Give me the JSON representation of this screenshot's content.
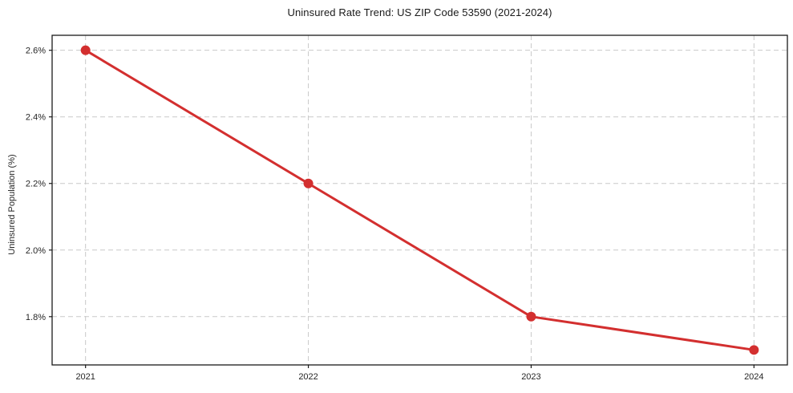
{
  "chart_data": {
    "type": "line",
    "title": "Uninsured Rate Trend: US ZIP Code 53590 (2021-2024)",
    "xlabel": "",
    "ylabel": "Uninsured Population (%)",
    "x": [
      2021,
      2022,
      2023,
      2024
    ],
    "x_tick_labels": [
      "2021",
      "2022",
      "2023",
      "2024"
    ],
    "series": [
      {
        "values": [
          2.6,
          2.2,
          1.8,
          1.7
        ],
        "color": "#d32f2f",
        "marker": "circle",
        "line_width": 3,
        "marker_radius": 6
      }
    ],
    "y_ticks": [
      1.8,
      2.0,
      2.2,
      2.4,
      2.6
    ],
    "y_tick_labels": [
      "1.8%",
      "2.0%",
      "2.2%",
      "2.4%",
      "2.6%"
    ],
    "xlim": [
      2020.85,
      2024.15
    ],
    "ylim": [
      1.655,
      2.645
    ],
    "grid": true,
    "grid_style": "dashed",
    "legend_position": "none"
  },
  "style": {
    "grid_color": "#c9c9c9",
    "spine_color": "#1a1a1a",
    "tick_color": "#1a1a1a",
    "text_color": "#262626",
    "background": "#ffffff"
  }
}
